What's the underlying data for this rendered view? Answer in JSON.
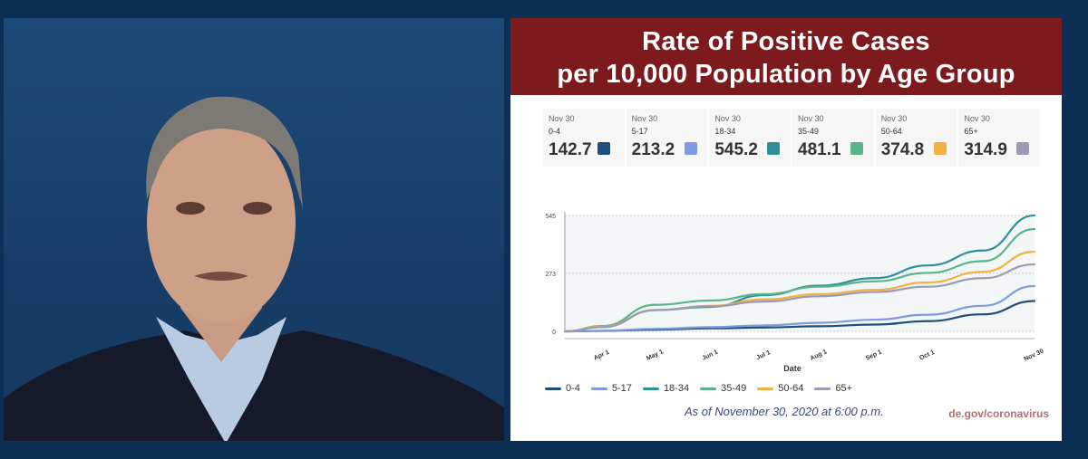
{
  "banner": {
    "title_line1": "Rate of Positive Cases",
    "title_line2": "per 10,000 Population by Age Group"
  },
  "tiles": [
    {
      "date": "Nov 30",
      "group": "0-4",
      "value": "142.7",
      "color": "#1f4e79"
    },
    {
      "date": "Nov 30",
      "group": "5-17",
      "value": "213.2",
      "color": "#7f9ae0"
    },
    {
      "date": "Nov 30",
      "group": "18-34",
      "value": "545.2",
      "color": "#2f8f99"
    },
    {
      "date": "Nov 30",
      "group": "35-49",
      "value": "481.1",
      "color": "#5bb38a"
    },
    {
      "date": "Nov 30",
      "group": "50-64",
      "value": "374.8",
      "color": "#f2b045"
    },
    {
      "date": "Nov 30",
      "group": "65+",
      "value": "314.9",
      "color": "#9b9bb3"
    }
  ],
  "chart_data": {
    "type": "line",
    "xlabel": "Date",
    "ylabel": "",
    "x_ticks": [
      "Apr 1",
      "May 1",
      "Jun 1",
      "Jul 1",
      "Aug 1",
      "Sep 1",
      "Oct 1",
      "Nov 30"
    ],
    "x_dates": [
      "2020-03-11",
      "2020-04-01",
      "2020-05-01",
      "2020-06-01",
      "2020-07-01",
      "2020-08-01",
      "2020-09-01",
      "2020-10-01",
      "2020-11-01",
      "2020-11-30"
    ],
    "y_ticks": [
      "0",
      "273",
      "545"
    ],
    "ylim": [
      0,
      545
    ],
    "grid": true,
    "legend_position": "bottom",
    "series": [
      {
        "name": "0-4",
        "color": "#1f4e79",
        "values": [
          0,
          2,
          8,
          14,
          18,
          24,
          32,
          48,
          80,
          142.7
        ]
      },
      {
        "name": "5-17",
        "color": "#7f9ae0",
        "values": [
          0,
          3,
          12,
          20,
          28,
          40,
          55,
          78,
          120,
          213.2
        ]
      },
      {
        "name": "18-34",
        "color": "#2f8f99",
        "values": [
          0,
          20,
          100,
          115,
          170,
          215,
          250,
          310,
          380,
          545.2
        ]
      },
      {
        "name": "35-49",
        "color": "#5bb38a",
        "values": [
          0,
          25,
          125,
          145,
          175,
          210,
          235,
          275,
          330,
          481.1
        ]
      },
      {
        "name": "50-64",
        "color": "#f2b045",
        "values": [
          0,
          22,
          100,
          120,
          150,
          175,
          195,
          230,
          280,
          374.8
        ]
      },
      {
        "name": "65+",
        "color": "#9b9bb3",
        "values": [
          0,
          20,
          100,
          118,
          140,
          165,
          185,
          210,
          250,
          314.9
        ]
      }
    ]
  },
  "footer": {
    "as_of": "As of November 30, 2020 at 6:00 p.m.",
    "source": "de.gov/coronavirus"
  }
}
